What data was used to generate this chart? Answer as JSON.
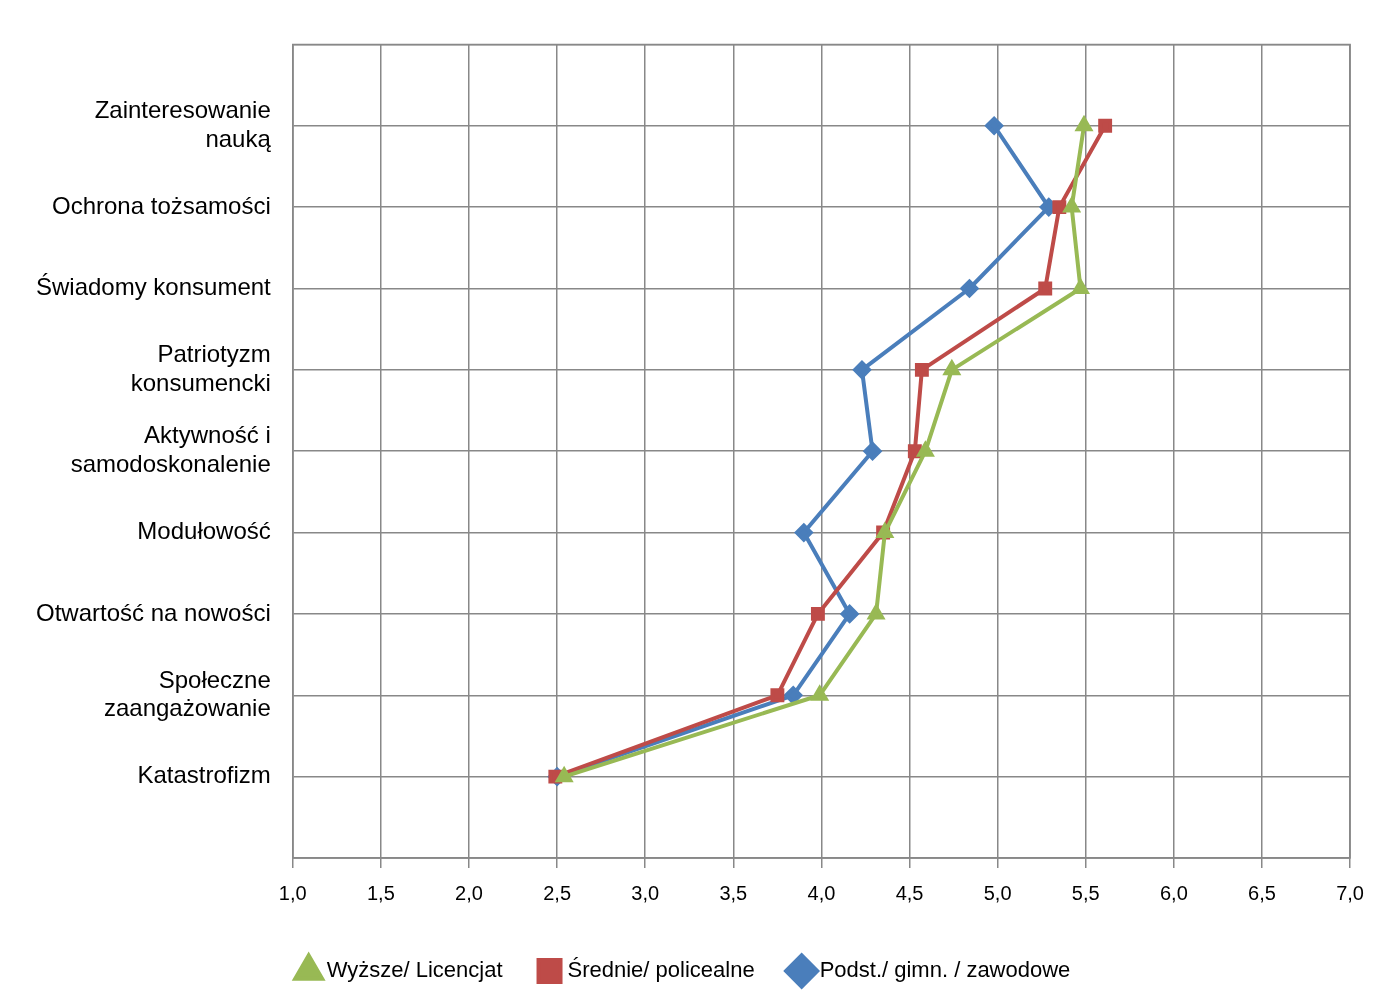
{
  "chart_data": {
    "type": "line",
    "orientation": "horizontal",
    "categories": [
      "Zainteresowanie nauką",
      "Ochrona tożsamości",
      "Świadomy konsument",
      "Patriotyzm konsumencki",
      "Aktywność i samodoskonalenie",
      "Modułowość",
      "Otwartość na nowości",
      "Społeczne zaangażowanie",
      "Katastrofizm"
    ],
    "series": [
      {
        "name": "Podst./ gimn. / zawodowe",
        "color": "#4a7ebb",
        "marker": "diamond",
        "values": [
          4.98,
          5.29,
          4.84,
          4.23,
          4.29,
          3.9,
          4.16,
          3.84,
          2.5
        ]
      },
      {
        "name": "Średnie/ policealne",
        "color": "#be4b48",
        "marker": "square",
        "values": [
          5.61,
          5.35,
          5.27,
          4.57,
          4.53,
          4.35,
          3.98,
          3.75,
          2.49
        ]
      },
      {
        "name": "Wyższe/ Licencjat",
        "color": "#98b954",
        "marker": "triangle",
        "values": [
          5.49,
          5.42,
          5.47,
          4.74,
          4.59,
          4.36,
          4.31,
          3.99,
          2.54
        ]
      }
    ],
    "xlim": [
      1,
      7
    ],
    "xticks": [
      {
        "value": 1,
        "label": "1,0"
      },
      {
        "value": 1.5,
        "label": "1,5"
      },
      {
        "value": 2,
        "label": "2,0"
      },
      {
        "value": 2.5,
        "label": "2,5"
      },
      {
        "value": 3,
        "label": "3,0"
      },
      {
        "value": 3.5,
        "label": "3,5"
      },
      {
        "value": 4,
        "label": "4,0"
      },
      {
        "value": 4.5,
        "label": "4,5"
      },
      {
        "value": 5,
        "label": "5,0"
      },
      {
        "value": 5.5,
        "label": "5,5"
      },
      {
        "value": 6,
        "label": "6,0"
      },
      {
        "value": 6.5,
        "label": "6,5"
      },
      {
        "value": 7,
        "label": "7,0"
      }
    ],
    "grid": true,
    "legend": "bottom",
    "line_style": "solid"
  }
}
